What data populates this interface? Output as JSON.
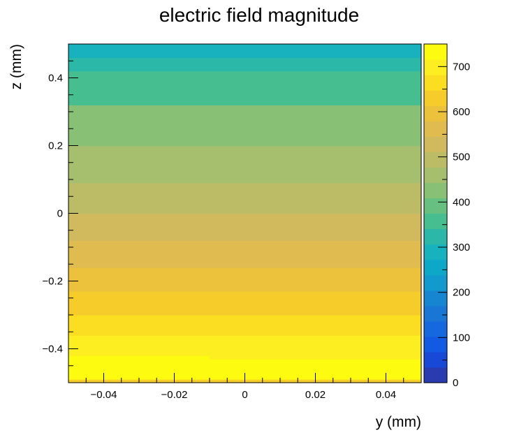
{
  "chart_data": {
    "type": "heatmap",
    "title": "electric field magnitude",
    "xlabel": "y (mm)",
    "ylabel": "z (mm)",
    "xlim": [
      -0.05,
      0.05
    ],
    "ylim": [
      -0.5,
      0.5
    ],
    "zlim": [
      0,
      750
    ],
    "x_ticks": [
      -0.04,
      -0.02,
      0,
      0.02,
      0.04
    ],
    "x_tick_labels": [
      "−0.04",
      "−0.02",
      "0",
      "0.02",
      "0.04"
    ],
    "y_ticks": [
      -0.4,
      -0.2,
      0,
      0.2,
      0.4
    ],
    "y_tick_labels": [
      "−0.4",
      "−0.2",
      "0",
      "0.2",
      "0.4"
    ],
    "z_ticks": [
      0,
      100,
      200,
      300,
      400,
      500,
      600,
      700
    ],
    "z_tick_labels": [
      "0",
      "100",
      "200",
      "300",
      "400",
      "500",
      "600",
      "700"
    ],
    "contour_levels": 20,
    "bands": [
      {
        "z_from": -0.5,
        "z_to": -0.49,
        "y_from": -0.05,
        "y_to": 0.05,
        "value": 620
      },
      {
        "z_from": -0.49,
        "z_to": -0.43,
        "y_from": -0.05,
        "y_to": 0.05,
        "value": 735
      },
      {
        "z_from": -0.43,
        "z_to": -0.42,
        "y_from": -0.05,
        "y_to": -0.01,
        "value": 735
      },
      {
        "z_from": -0.43,
        "z_to": -0.42,
        "y_from": -0.01,
        "y_to": 0.05,
        "value": 700
      },
      {
        "z_from": -0.42,
        "z_to": -0.36,
        "y_from": -0.05,
        "y_to": 0.05,
        "value": 700
      },
      {
        "z_from": -0.36,
        "z_to": -0.3,
        "y_from": -0.05,
        "y_to": 0.05,
        "value": 665
      },
      {
        "z_from": -0.3,
        "z_to": -0.23,
        "y_from": -0.05,
        "y_to": 0.05,
        "value": 630
      },
      {
        "z_from": -0.23,
        "z_to": -0.16,
        "y_from": -0.05,
        "y_to": 0.05,
        "value": 590
      },
      {
        "z_from": -0.16,
        "z_to": -0.08,
        "y_from": -0.05,
        "y_to": 0.05,
        "value": 555
      },
      {
        "z_from": -0.08,
        "z_to": 0.0,
        "y_from": -0.05,
        "y_to": 0.05,
        "value": 520
      },
      {
        "z_from": 0.0,
        "z_to": 0.09,
        "y_from": -0.05,
        "y_to": 0.05,
        "value": 480
      },
      {
        "z_from": 0.09,
        "z_to": 0.2,
        "y_from": -0.05,
        "y_to": 0.05,
        "value": 445
      },
      {
        "z_from": 0.2,
        "z_to": 0.32,
        "y_from": -0.05,
        "y_to": 0.05,
        "value": 410
      },
      {
        "z_from": 0.32,
        "z_to": 0.42,
        "y_from": -0.05,
        "y_to": 0.05,
        "value": 370
      },
      {
        "z_from": 0.42,
        "z_to": 0.46,
        "y_from": -0.05,
        "y_to": 0.05,
        "value": 335
      },
      {
        "z_from": 0.46,
        "z_to": 0.5,
        "y_from": -0.05,
        "y_to": 0.05,
        "value": 300
      }
    ],
    "palette": [
      "#2a3bb0",
      "#1849d6",
      "#135ae3",
      "#1568de",
      "#1976d5",
      "#1786d1",
      "#129ace",
      "#0da8c8",
      "#17b2bd",
      "#2cb8a8",
      "#47be90",
      "#68c080",
      "#88c176",
      "#a6bf6e",
      "#bdbc66",
      "#d1ba5e",
      "#e0bb4f",
      "#ecc23c",
      "#f6cc2b",
      "#fbdd22",
      "#fcee20",
      "#fcfb10"
    ]
  }
}
